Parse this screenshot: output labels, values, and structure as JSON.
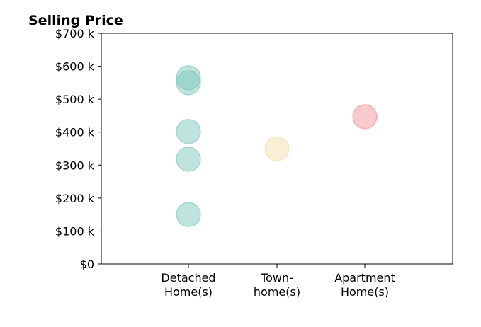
{
  "chart_data": {
    "type": "scatter",
    "title": "Selling Price",
    "xlabel": "",
    "ylabel": "",
    "categories": [
      [
        "Detached",
        "Home(s)"
      ],
      [
        "Town-",
        "home(s)"
      ],
      [
        "Apartment",
        "Home(s)"
      ]
    ],
    "ylim": [
      0,
      700000
    ],
    "yticks": [
      0,
      100000,
      200000,
      300000,
      400000,
      500000,
      600000,
      700000
    ],
    "ytick_labels": [
      "$0",
      "$100 k",
      "$200 k",
      "$300 k",
      "$400 k",
      "$500 k",
      "$600 k",
      "$700 k"
    ],
    "grid": false,
    "points": [
      {
        "category": 0,
        "value": 565000,
        "color": "#80c8bc"
      },
      {
        "category": 0,
        "value": 550000,
        "color": "#80c8bc"
      },
      {
        "category": 0,
        "value": 402000,
        "color": "#80c8bc"
      },
      {
        "category": 0,
        "value": 318000,
        "color": "#80c8bc"
      },
      {
        "category": 0,
        "value": 150000,
        "color": "#80c8bc"
      },
      {
        "category": 1,
        "value": 350000,
        "color": "#f4dfb0"
      },
      {
        "category": 2,
        "value": 447000,
        "color": "#f2939b"
      }
    ]
  }
}
